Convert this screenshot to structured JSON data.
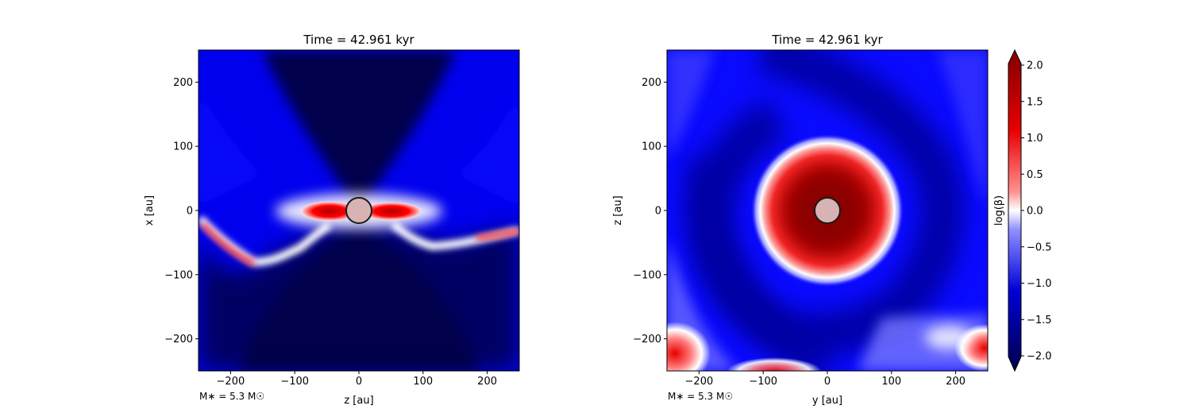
{
  "chart_data": [
    {
      "type": "heatmap",
      "title": "Time = 42.961 kyr",
      "xlabel": "z [au]",
      "ylabel": "x [au]",
      "xlim": [
        -250,
        250
      ],
      "ylim": [
        -250,
        250
      ],
      "xticks": [
        -200,
        -100,
        0,
        100,
        200
      ],
      "yticks": [
        -200,
        -100,
        0,
        100,
        200
      ],
      "xtick_labels": [
        "−200",
        "−100",
        "0",
        "100",
        "200"
      ],
      "ytick_labels": [
        "−200",
        "−100",
        "0",
        "100",
        "200"
      ],
      "annotation": "M∗ = 5.3 M☉",
      "sink_radius": 20,
      "pattern": "edge-on"
    },
    {
      "type": "heatmap",
      "title": "Time = 42.961 kyr",
      "xlabel": "y [au]",
      "ylabel": "z [au]",
      "xlim": [
        -250,
        250
      ],
      "ylim": [
        -250,
        250
      ],
      "xticks": [
        -200,
        -100,
        0,
        100,
        200
      ],
      "yticks": [
        -200,
        -100,
        0,
        100,
        200
      ],
      "xtick_labels": [
        "−200",
        "−100",
        "0",
        "100",
        "200"
      ],
      "ytick_labels": [
        "−200",
        "−100",
        "0",
        "100",
        "200"
      ],
      "annotation": "M∗ = 5.3 M☉",
      "sink_radius": 20,
      "pattern": "face-on"
    }
  ],
  "colorbar": {
    "label": "log(β)",
    "range": [
      -2.0,
      2.0
    ],
    "ticks": [
      2.0,
      1.5,
      1.0,
      0.5,
      0.0,
      -0.5,
      -1.0,
      -1.5,
      -2.0
    ],
    "tick_labels": [
      "2.0",
      "1.5",
      "1.0",
      "0.5",
      "0.0",
      "−0.5",
      "−1.0",
      "−1.5",
      "−2.0"
    ],
    "extend": "both",
    "colormap": "seismic",
    "colors": {
      "low": "#00004c",
      "mid_low": "#0000ff",
      "mid": "#ffffff",
      "mid_high": "#ff0000",
      "high": "#800000"
    }
  },
  "sink_color": "#d8b3b3",
  "sink_edge_color": "#1a1a1a"
}
